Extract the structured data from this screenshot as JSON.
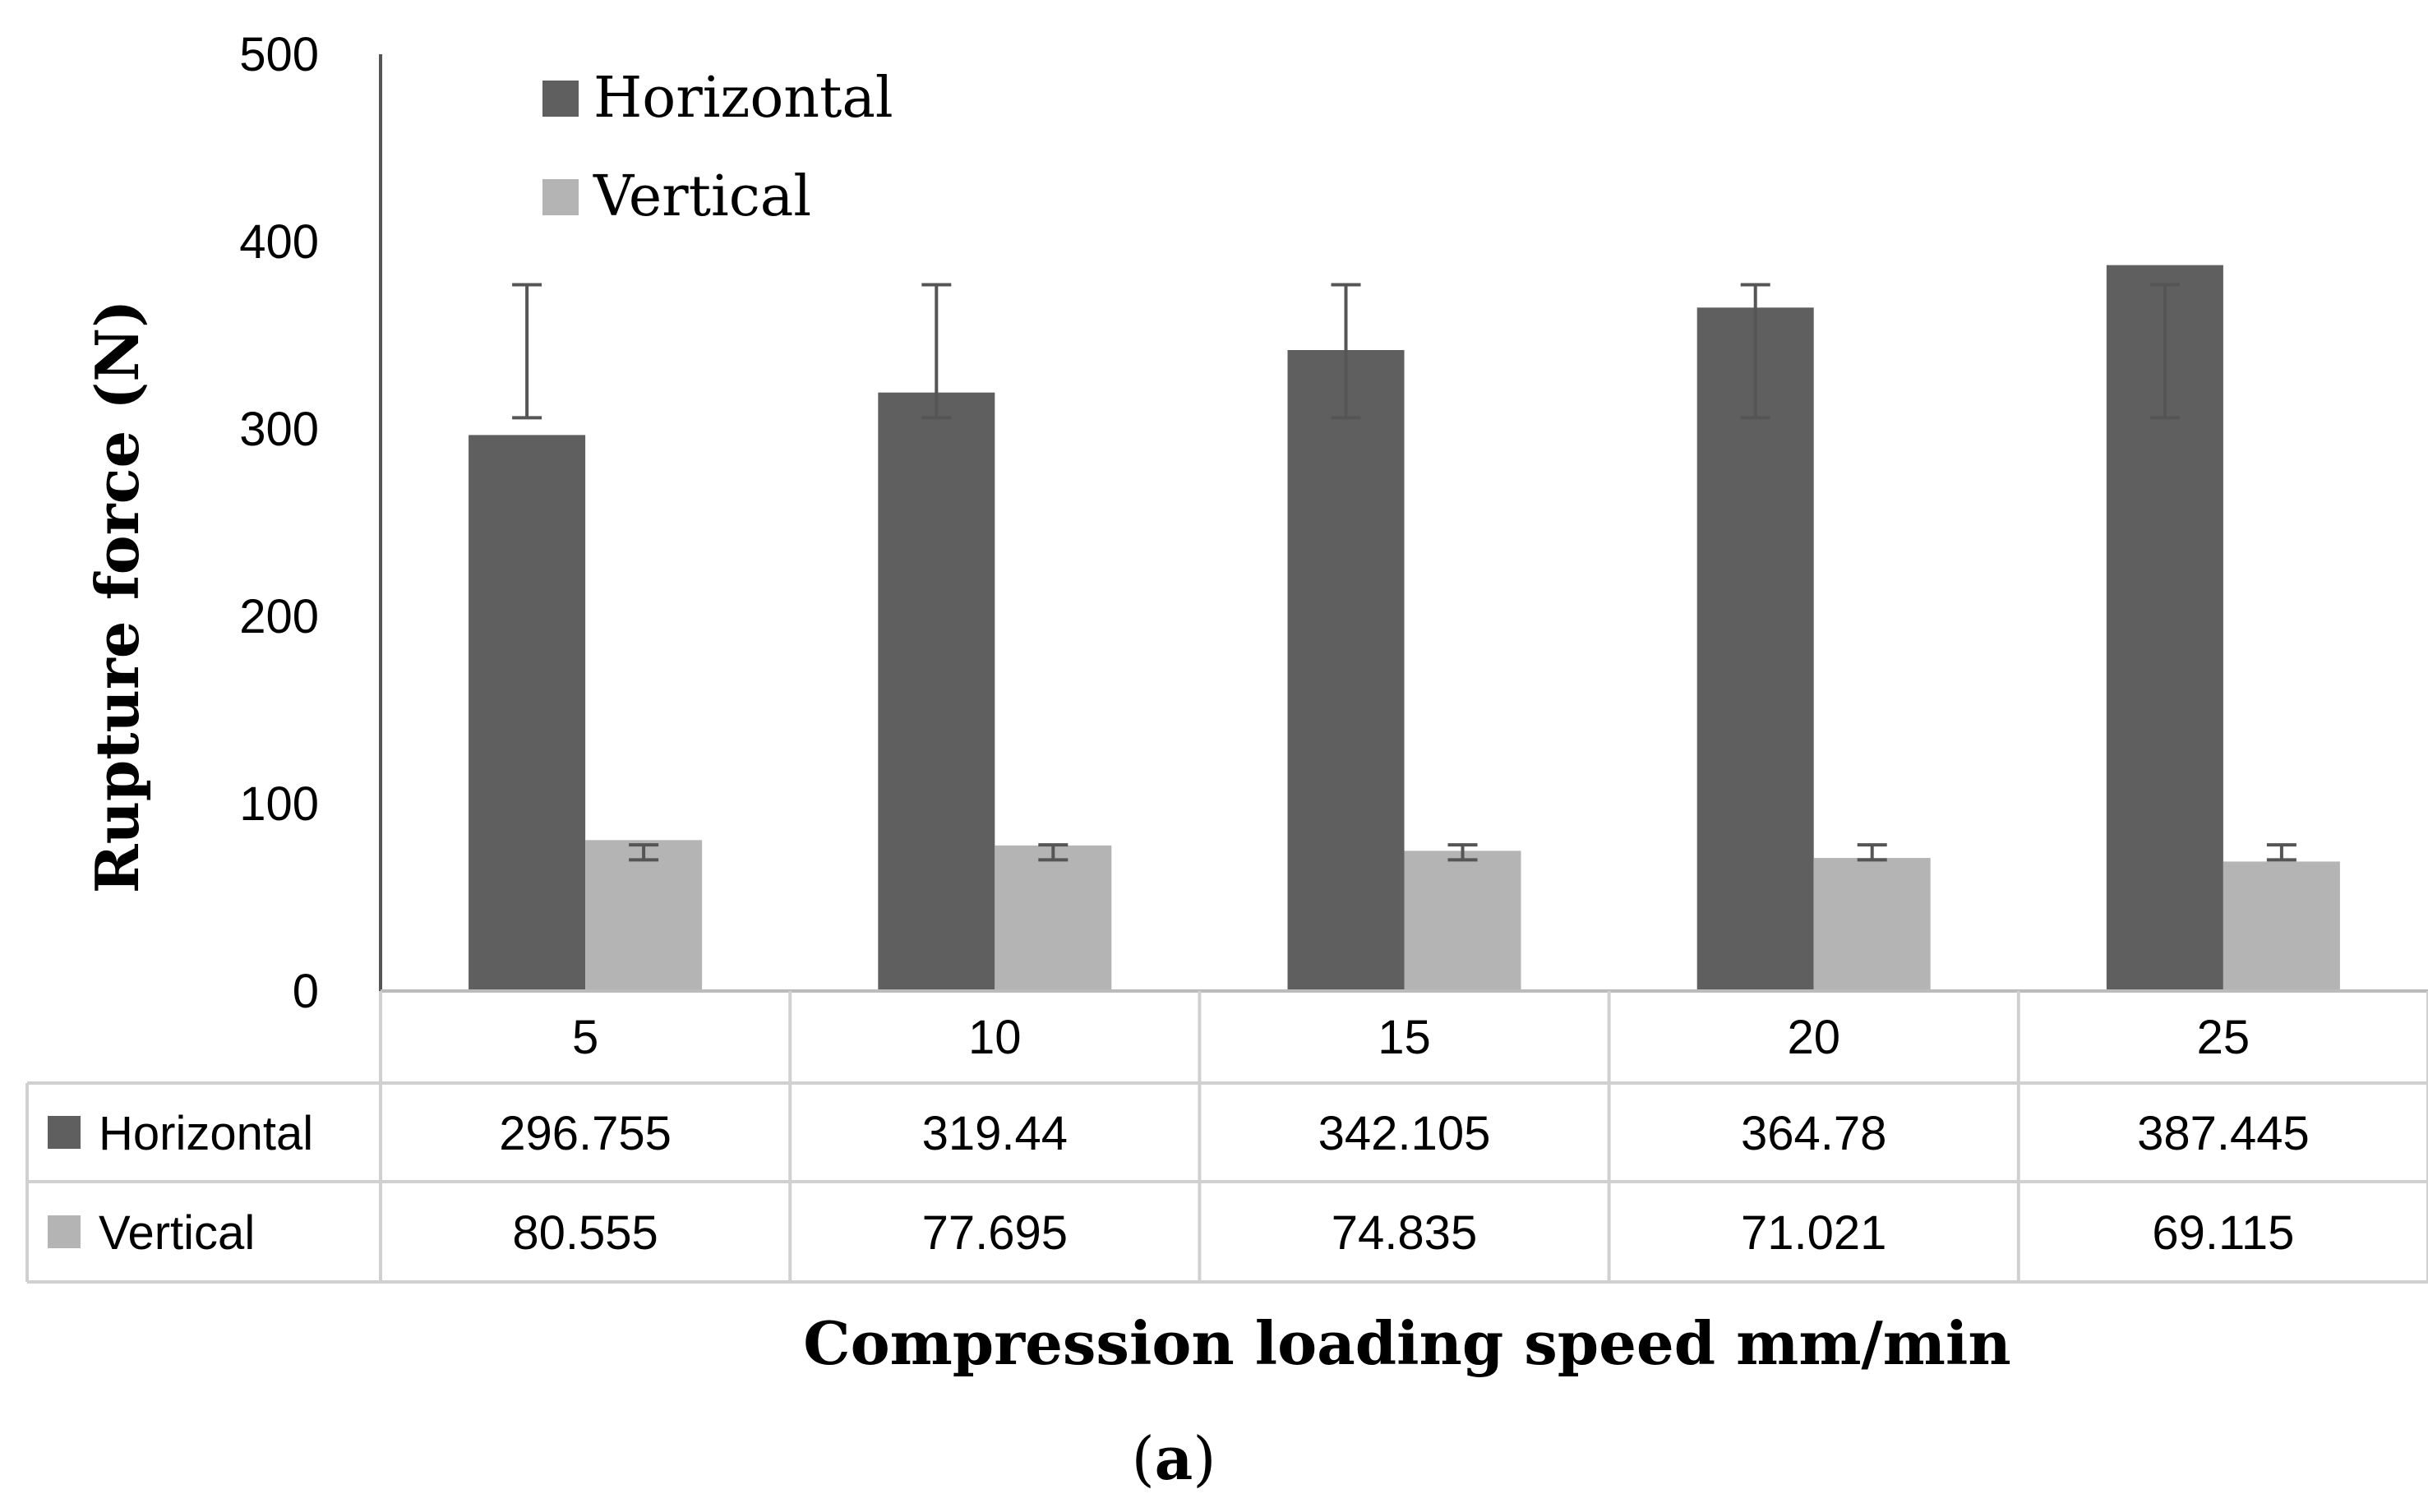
{
  "chart_data": {
    "type": "bar",
    "title": "",
    "xlabel": "Compression loading speed mm/min",
    "ylabel": "Rupture force (N)",
    "caption": "(a)",
    "caption_bold_part": "a",
    "categories": [
      "5",
      "10",
      "15",
      "20",
      "25"
    ],
    "ylim": [
      0,
      500
    ],
    "yticks": [
      "0",
      "100",
      "200",
      "300",
      "400",
      "500"
    ],
    "legend_position": "top-left",
    "grid": false,
    "series": [
      {
        "name": "Horizontal",
        "color": "#5f5f5f",
        "values": [
          296.755,
          319.44,
          342.105,
          364.78,
          387.445
        ],
        "labels": [
          "296.755",
          "319.44",
          "342.105",
          "364.78",
          "387.445"
        ],
        "error_low": [
          306,
          306,
          306,
          306,
          306
        ],
        "error_high": [
          377,
          377,
          377,
          377,
          377
        ]
      },
      {
        "name": "Vertical",
        "color": "#b4b4b4",
        "values": [
          80.555,
          77.695,
          74.835,
          71.021,
          69.115
        ],
        "labels": [
          "80.555",
          "77.695",
          "74.835",
          "71.021",
          "69.115"
        ],
        "error_low": [
          70,
          70,
          70,
          70,
          70
        ],
        "error_high": [
          78,
          78,
          78,
          78,
          78
        ]
      }
    ]
  }
}
